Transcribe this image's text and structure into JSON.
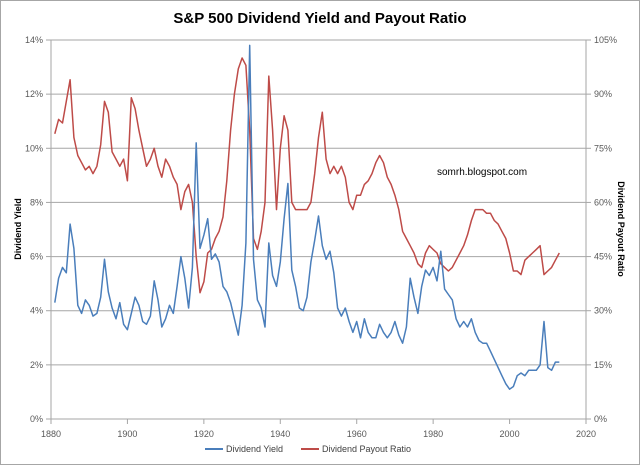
{
  "chart_data": {
    "type": "line",
    "title": "S&P 500 Dividend Yield and Payout Ratio",
    "xlabel": "",
    "ylabel": "Dividend Yield",
    "y2label": "Dividend Payout Ratio",
    "xlim": [
      1880,
      2020
    ],
    "ylim": [
      0,
      14
    ],
    "y2lim": [
      0,
      105
    ],
    "x_ticks": [
      "1880",
      "1900",
      "1920",
      "1940",
      "1960",
      "1980",
      "2000",
      "2020"
    ],
    "x_tick_values": [
      1880,
      1900,
      1920,
      1940,
      1960,
      1980,
      2000,
      2020
    ],
    "y_ticks": [
      "0%",
      "2%",
      "4%",
      "6%",
      "8%",
      "10%",
      "12%",
      "14%"
    ],
    "y_tick_values": [
      0,
      2,
      4,
      6,
      8,
      10,
      12,
      14
    ],
    "y2_ticks": [
      "0%",
      "15%",
      "30%",
      "45%",
      "60%",
      "75%",
      "90%",
      "105%"
    ],
    "y2_tick_values": [
      0,
      15,
      30,
      45,
      60,
      75,
      90,
      105
    ],
    "grid": true,
    "legend_position": "bottom",
    "annotation": "somrh.blogspot.com",
    "series": [
      {
        "name": "Dividend Yield",
        "axis": "left",
        "color": "#4a7ebb",
        "x": [
          1881,
          1882,
          1883,
          1884,
          1885,
          1886,
          1887,
          1888,
          1889,
          1890,
          1891,
          1892,
          1893,
          1894,
          1895,
          1896,
          1897,
          1898,
          1899,
          1900,
          1901,
          1902,
          1903,
          1904,
          1905,
          1906,
          1907,
          1908,
          1909,
          1910,
          1911,
          1912,
          1913,
          1914,
          1915,
          1916,
          1917,
          1918,
          1919,
          1920,
          1921,
          1922,
          1923,
          1924,
          1925,
          1926,
          1927,
          1928,
          1929,
          1930,
          1931,
          1932,
          1933,
          1934,
          1935,
          1936,
          1937,
          1938,
          1939,
          1940,
          1941,
          1942,
          1943,
          1944,
          1945,
          1946,
          1947,
          1948,
          1949,
          1950,
          1951,
          1952,
          1953,
          1954,
          1955,
          1956,
          1957,
          1958,
          1959,
          1960,
          1961,
          1962,
          1963,
          1964,
          1965,
          1966,
          1967,
          1968,
          1969,
          1970,
          1971,
          1972,
          1973,
          1974,
          1975,
          1976,
          1977,
          1978,
          1979,
          1980,
          1981,
          1982,
          1983,
          1984,
          1985,
          1986,
          1987,
          1988,
          1989,
          1990,
          1991,
          1992,
          1993,
          1994,
          1995,
          1996,
          1997,
          1998,
          1999,
          2000,
          2001,
          2002,
          2003,
          2004,
          2005,
          2006,
          2007,
          2008,
          2009,
          2010,
          2011,
          2012,
          2013
        ],
        "values": [
          4.3,
          5.2,
          5.6,
          5.4,
          7.2,
          6.3,
          4.2,
          3.9,
          4.4,
          4.2,
          3.8,
          3.9,
          4.5,
          5.9,
          4.7,
          4.1,
          3.7,
          4.3,
          3.5,
          3.3,
          3.9,
          4.5,
          4.2,
          3.6,
          3.5,
          3.8,
          5.1,
          4.4,
          3.4,
          3.7,
          4.2,
          3.9,
          4.9,
          6.0,
          5.2,
          4.1,
          5.6,
          10.2,
          6.3,
          6.8,
          7.4,
          5.9,
          6.1,
          5.8,
          4.9,
          4.7,
          4.3,
          3.7,
          3.1,
          4.2,
          6.5,
          13.8,
          5.9,
          4.4,
          4.1,
          3.4,
          6.5,
          5.3,
          4.9,
          5.8,
          7.4,
          8.7,
          5.5,
          4.9,
          4.1,
          4.0,
          4.5,
          5.8,
          6.6,
          7.5,
          6.4,
          5.9,
          6.2,
          5.4,
          4.1,
          3.8,
          4.1,
          3.6,
          3.2,
          3.6,
          3.0,
          3.7,
          3.2,
          3.0,
          3.0,
          3.5,
          3.2,
          3.0,
          3.2,
          3.6,
          3.1,
          2.8,
          3.4,
          5.2,
          4.5,
          3.9,
          4.9,
          5.5,
          5.3,
          5.6,
          5.1,
          6.2,
          4.8,
          4.6,
          4.4,
          3.7,
          3.4,
          3.6,
          3.4,
          3.7,
          3.2,
          2.9,
          2.8,
          2.8,
          2.5,
          2.2,
          1.9,
          1.6,
          1.3,
          1.1,
          1.2,
          1.6,
          1.7,
          1.6,
          1.8,
          1.8,
          1.8,
          2.0,
          3.6,
          1.9,
          1.8,
          2.1,
          2.1
        ]
      },
      {
        "name": "Dividend Payout Ratio",
        "axis": "right",
        "color": "#be4b48",
        "x": [
          1881,
          1882,
          1883,
          1884,
          1885,
          1886,
          1887,
          1888,
          1889,
          1890,
          1891,
          1892,
          1893,
          1894,
          1895,
          1896,
          1897,
          1898,
          1899,
          1900,
          1901,
          1902,
          1903,
          1904,
          1905,
          1906,
          1907,
          1908,
          1909,
          1910,
          1911,
          1912,
          1913,
          1914,
          1915,
          1916,
          1917,
          1918,
          1919,
          1920,
          1921,
          1922,
          1923,
          1924,
          1925,
          1926,
          1927,
          1928,
          1929,
          1930,
          1931,
          1932,
          1933,
          1934,
          1935,
          1936,
          1937,
          1938,
          1939,
          1940,
          1941,
          1942,
          1943,
          1944,
          1945,
          1946,
          1947,
          1948,
          1949,
          1950,
          1951,
          1952,
          1953,
          1954,
          1955,
          1956,
          1957,
          1958,
          1959,
          1960,
          1961,
          1962,
          1963,
          1964,
          1965,
          1966,
          1967,
          1968,
          1969,
          1970,
          1971,
          1972,
          1973,
          1974,
          1975,
          1976,
          1977,
          1978,
          1979,
          1980,
          1981,
          1982,
          1983,
          1984,
          1985,
          1986,
          1987,
          1988,
          1989,
          1990,
          1991,
          1992,
          1993,
          1994,
          1995,
          1996,
          1997,
          1998,
          1999,
          2000,
          2001,
          2002,
          2003,
          2004,
          2005,
          2006,
          2007,
          2008,
          2009,
          2010,
          2011,
          2012,
          2013
        ],
        "values": [
          79,
          83,
          82,
          88,
          94,
          78,
          73,
          71,
          69,
          70,
          68,
          70,
          76,
          88,
          85,
          74,
          72,
          70,
          72,
          66,
          89,
          86,
          80,
          75,
          70,
          72,
          75,
          70,
          67,
          72,
          70,
          67,
          65,
          58,
          63,
          65,
          60,
          45,
          35,
          38,
          46,
          47,
          50,
          52,
          56,
          66,
          80,
          90,
          97,
          100,
          98,
          80,
          50,
          47,
          52,
          60,
          95,
          80,
          58,
          75,
          84,
          80,
          60,
          58,
          58,
          58,
          58,
          60,
          68,
          78,
          85,
          72,
          68,
          70,
          68,
          70,
          67,
          60,
          58,
          62,
          62,
          65,
          66,
          68,
          71,
          73,
          71,
          67,
          65,
          62,
          58,
          52,
          50,
          48,
          46,
          43,
          42,
          46,
          48,
          47,
          46,
          43,
          42,
          41,
          42,
          44,
          46,
          48,
          51,
          55,
          58,
          58,
          58,
          57,
          57,
          55,
          54,
          52,
          50,
          46,
          41,
          41,
          40,
          44,
          45,
          46,
          47,
          48,
          40,
          41,
          42,
          44,
          46
        ]
      }
    ]
  }
}
